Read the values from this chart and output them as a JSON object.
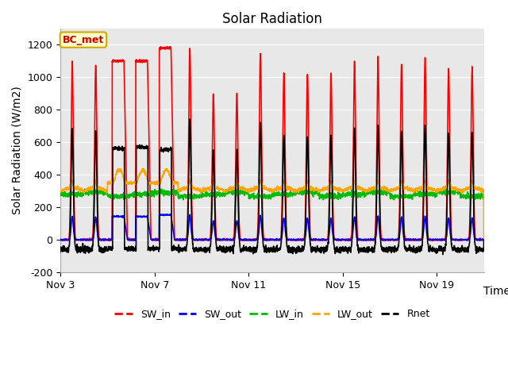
{
  "title": "Solar Radiation",
  "ylabel": "Solar Radiation (W/m2)",
  "xlabel": "Time",
  "ylim": [
    -200,
    1300
  ],
  "yticks": [
    -200,
    0,
    200,
    400,
    600,
    800,
    1000,
    1200
  ],
  "x_tick_labels": [
    "Nov 3",
    "Nov 7",
    "Nov 11",
    "Nov 15",
    "Nov 19"
  ],
  "x_tick_positions": [
    0,
    4,
    8,
    12,
    16
  ],
  "series": [
    "SW_in",
    "SW_out",
    "LW_in",
    "LW_out",
    "Rnet"
  ],
  "colors": {
    "SW_in": "#ff0000",
    "SW_out": "#0000ff",
    "LW_in": "#00bb00",
    "LW_out": "#ffa500",
    "Rnet": "#000000"
  },
  "annotation_text": "BC_met",
  "annotation_fg": "#cc0000",
  "annotation_bg": "#ffffcc",
  "annotation_edge": "#ccaa00",
  "background_color": "#ffffff",
  "plot_bg_color": "#e8e8e8",
  "grid_color": "#ffffff",
  "n_days": 18,
  "pts_per_day": 144,
  "title_fontsize": 12,
  "axis_label_fontsize": 10,
  "tick_fontsize": 9,
  "legend_fontsize": 9,
  "linewidth": 1.2
}
